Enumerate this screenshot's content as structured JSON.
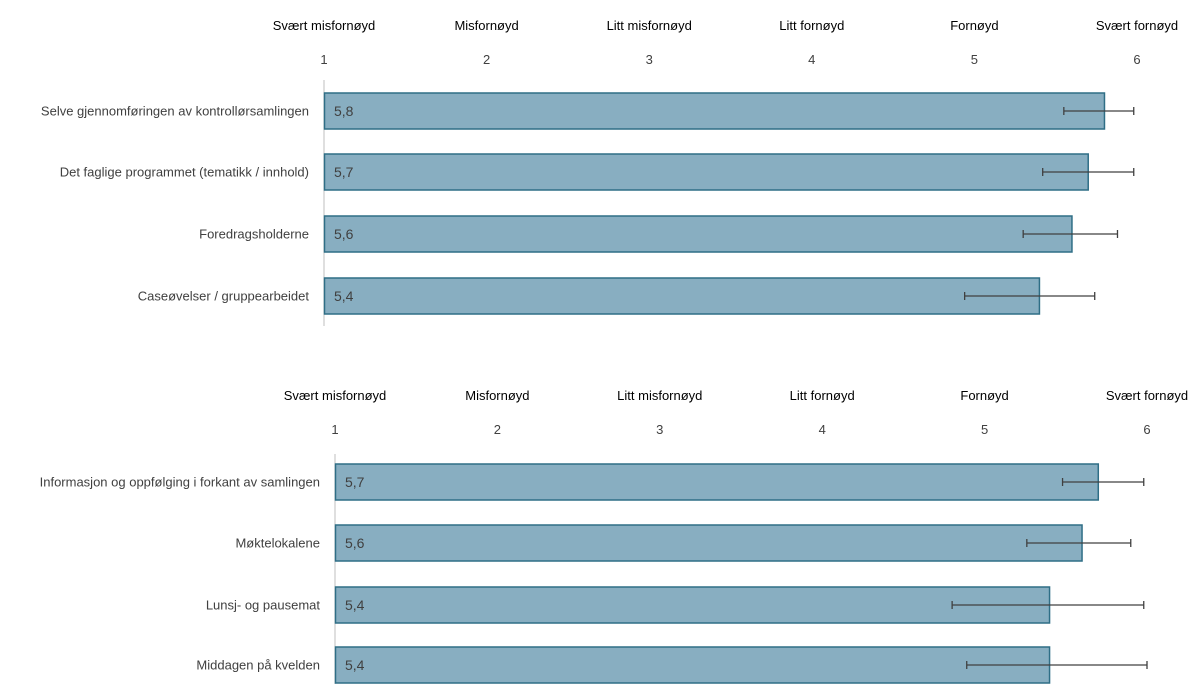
{
  "colors": {
    "bar_fill": "#88aec1",
    "bar_stroke": "#2f6e86",
    "error_bar": "#404040",
    "axis_line": "#bfbfbf",
    "text": "#404040",
    "header_text": "#000000"
  },
  "chart_data": [
    {
      "type": "bar",
      "orientation": "horizontal",
      "scale_labels": [
        "Svært misfornøyd",
        "Misfornøyd",
        "Litt misfornøyd",
        "Litt fornøyd",
        "Fornøyd",
        "Svært fornøyd"
      ],
      "ticks": [
        1,
        2,
        3,
        4,
        5,
        6
      ],
      "xlim": [
        1,
        6
      ],
      "categories": [
        "Selve gjennomføringen av kontrollørsamlingen",
        "Det faglige programmet (tematikk / innhold)",
        "Foredragsholderne",
        "Caseøvelser / gruppearbeidet"
      ],
      "values": [
        5.8,
        5.7,
        5.6,
        5.4
      ],
      "value_labels": [
        "5,8",
        "5,7",
        "5,6",
        "5,4"
      ],
      "error_low": [
        5.55,
        5.42,
        5.3,
        4.94
      ],
      "error_high": [
        5.98,
        5.98,
        5.88,
        5.74
      ],
      "grid": false,
      "legend": "none"
    },
    {
      "type": "bar",
      "orientation": "horizontal",
      "scale_labels": [
        "Svært misfornøyd",
        "Misfornøyd",
        "Litt misfornøyd",
        "Litt fornøyd",
        "Fornøyd",
        "Svært fornøyd"
      ],
      "ticks": [
        1,
        2,
        3,
        4,
        5,
        6
      ],
      "xlim": [
        1,
        6
      ],
      "categories": [
        "Informasjon og oppfølging i forkant av samlingen",
        "Møktelokalene",
        "Lunsj- og pausemat",
        "Middagen på kvelden"
      ],
      "values": [
        5.7,
        5.6,
        5.4,
        5.4
      ],
      "value_labels": [
        "5,7",
        "5,6",
        "5,4",
        "5,4"
      ],
      "error_low": [
        5.48,
        5.26,
        4.8,
        4.89
      ],
      "error_high": [
        5.98,
        5.9,
        5.98,
        6.0
      ],
      "grid": false,
      "legend": "none"
    }
  ]
}
